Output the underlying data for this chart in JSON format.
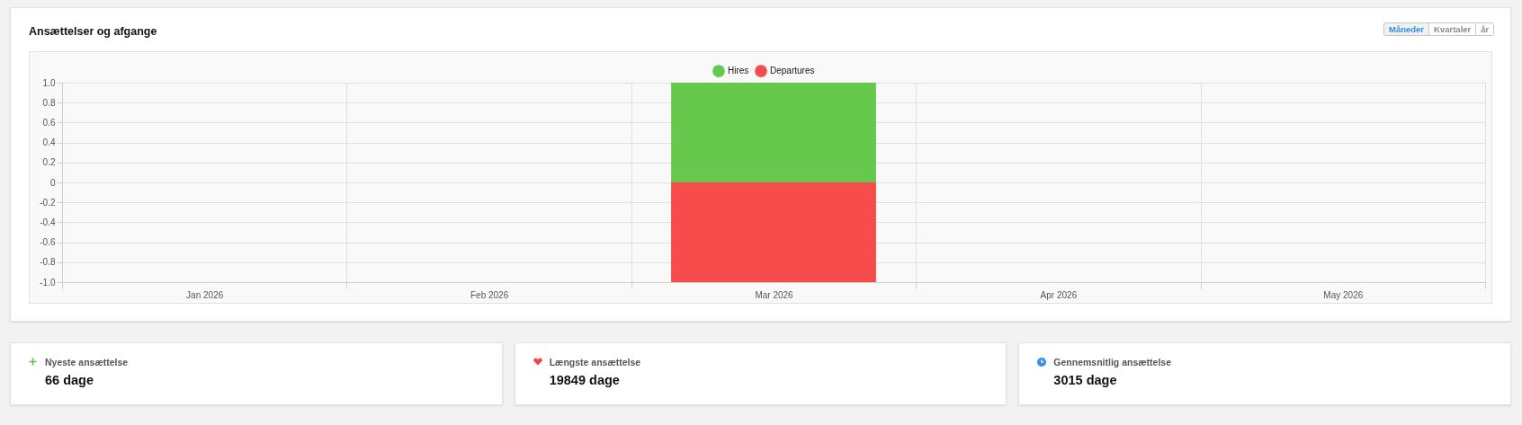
{
  "chart_data": [
    {
      "type": "bar",
      "title": "Ansættelser og afgange",
      "annotations": [
        "Måneder",
        "Kvartaler",
        "år"
      ],
      "categories": [
        "Jan 2026",
        "Feb 2026",
        "Mar 2026",
        "Apr 2026",
        "May 2026"
      ],
      "series": [
        {
          "name": "Hires",
          "color": "#66c84c",
          "values": [
            0,
            0,
            1,
            0,
            0
          ]
        },
        {
          "name": "Departures",
          "color": "#f84b4b",
          "values": [
            0,
            0,
            -1,
            0,
            0
          ]
        }
      ],
      "stacked": true,
      "ylim": [
        -1,
        1
      ],
      "yticks": [
        {
          "value": -1,
          "label": "-1.0"
        },
        -0.8,
        -0.6,
        -0.4,
        -0.2,
        0,
        0.2,
        0.4,
        0.6,
        0.8,
        {
          "value": 1,
          "label": "1.0"
        }
      ],
      "grid": true,
      "legend": "top"
    },
    {
      "type": "other",
      "title": "Nyeste ansættelse",
      "annotations": [
        "66 dage"
      ]
    },
    {
      "type": "other",
      "title": "Længste ansættelse",
      "annotations": [
        "19849 dage"
      ]
    },
    {
      "type": "other",
      "title": "Gennemsnitlig ansættelse",
      "annotations": [
        "3015 dage"
      ]
    }
  ]
}
